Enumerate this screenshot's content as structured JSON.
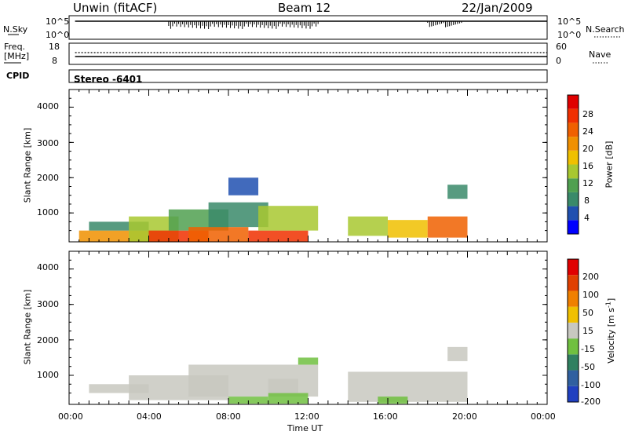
{
  "header": {
    "station": "Unwin (fitACF)",
    "beam": "Beam 12",
    "date": "22/Jan/2009"
  },
  "panels": {
    "nsky": {
      "label": "N.Sky",
      "ticks": [
        "10^5",
        "10^0"
      ],
      "right_label": "N.Search",
      "right_ticks": [
        "10^5",
        "10^0"
      ]
    },
    "freq": {
      "label_line1": "Freq.",
      "label_line2": "[MHz]",
      "ticks": [
        "18",
        "8"
      ],
      "right_label": "Nave",
      "right_ticks": [
        "60",
        "0"
      ]
    },
    "cpid": {
      "label": "CPID",
      "value": "Stereo -6401"
    }
  },
  "y_axis": {
    "label": "Slant Range [km]",
    "ticks": [
      "4000",
      "3000",
      "2000",
      "1000"
    ]
  },
  "x_axis": {
    "label": "Time UT",
    "ticks": [
      "00:00",
      "04:00",
      "08:00",
      "12:00",
      "16:00",
      "20:00",
      "00:00"
    ]
  },
  "power_scale": {
    "label": "Power [dB]",
    "ticks": [
      "28",
      "24",
      "20",
      "16",
      "12",
      "8",
      "4"
    ],
    "colors": [
      "#0000ff",
      "#2050b0",
      "#3a8a6a",
      "#50a050",
      "#a8c830",
      "#f0c000",
      "#f09000",
      "#f06000",
      "#f03000",
      "#e00000"
    ]
  },
  "velocity_scale": {
    "label_main": "Velocity",
    "label_unit": "[m s",
    "label_exp": "-1",
    "label_close": "]",
    "ticks": [
      "200",
      "100",
      "50",
      "15",
      "-15",
      "-50",
      "-100",
      "-200"
    ],
    "colors": [
      "#2040c0",
      "#3060a0",
      "#308060",
      "#70c040",
      "#c8c8c0",
      "#f0c000",
      "#f08000",
      "#e04000",
      "#e00000"
    ]
  },
  "chart_data": [
    {
      "type": "heatmap",
      "title": "",
      "xlabel": "Time UT",
      "ylabel": "Slant Range [km]",
      "xlim": [
        "00:00",
        "24:00"
      ],
      "ylim": [
        180,
        4500
      ],
      "quantity": "Power [dB]",
      "zlim": [
        0,
        30
      ],
      "data_blocks": [
        {
          "t0": 0.5,
          "t1": 4.0,
          "r0": 180,
          "r1": 500,
          "v": 20
        },
        {
          "t0": 1.0,
          "t1": 4.0,
          "r0": 500,
          "r1": 750,
          "v": 6
        },
        {
          "t0": 3.0,
          "t1": 5.5,
          "r0": 180,
          "r1": 900,
          "v": 14
        },
        {
          "t0": 4.0,
          "t1": 7.0,
          "r0": 180,
          "r1": 500,
          "v": 26
        },
        {
          "t0": 5.0,
          "t1": 8.0,
          "r0": 500,
          "r1": 1100,
          "v": 10
        },
        {
          "t0": 6.0,
          "t1": 9.0,
          "r0": 180,
          "r1": 600,
          "v": 22
        },
        {
          "t0": 7.0,
          "t1": 10.0,
          "r0": 600,
          "r1": 1300,
          "v": 8
        },
        {
          "t0": 9.0,
          "t1": 12.0,
          "r0": 180,
          "r1": 500,
          "v": 26
        },
        {
          "t0": 9.5,
          "t1": 12.5,
          "r0": 500,
          "r1": 1200,
          "v": 12
        },
        {
          "t0": 8.0,
          "t1": 9.5,
          "r0": 1500,
          "r1": 2000,
          "v": 4
        },
        {
          "t0": 14.0,
          "t1": 16.0,
          "r0": 350,
          "r1": 900,
          "v": 12
        },
        {
          "t0": 16.0,
          "t1": 18.0,
          "r0": 300,
          "r1": 800,
          "v": 16
        },
        {
          "t0": 18.0,
          "t1": 20.0,
          "r0": 300,
          "r1": 900,
          "v": 22
        },
        {
          "t0": 19.0,
          "t1": 20.0,
          "r0": 1400,
          "r1": 1800,
          "v": 6
        }
      ]
    },
    {
      "type": "heatmap",
      "title": "",
      "xlabel": "Time UT",
      "ylabel": "Slant Range [km]",
      "xlim": [
        "00:00",
        "24:00"
      ],
      "ylim": [
        180,
        4500
      ],
      "quantity": "Velocity [m s-1]",
      "zlim": [
        -250,
        250
      ],
      "data_blocks": [
        {
          "t0": 1.0,
          "t1": 4.0,
          "r0": 500,
          "r1": 750,
          "v": 0
        },
        {
          "t0": 3.0,
          "t1": 8.0,
          "r0": 300,
          "r1": 1000,
          "v": 0
        },
        {
          "t0": 6.0,
          "t1": 12.5,
          "r0": 400,
          "r1": 1300,
          "v": 0
        },
        {
          "t0": 8.0,
          "t1": 10.0,
          "r0": 200,
          "r1": 400,
          "v": -40
        },
        {
          "t0": 10.0,
          "t1": 12.0,
          "r0": 200,
          "r1": 500,
          "v": -60
        },
        {
          "t0": 10.0,
          "t1": 11.5,
          "r0": 500,
          "r1": 900,
          "v": 25
        },
        {
          "t0": 11.5,
          "t1": 12.5,
          "r0": 1300,
          "r1": 1500,
          "v": -80
        },
        {
          "t0": 14.0,
          "t1": 20.0,
          "r0": 250,
          "r1": 1100,
          "v": 0
        },
        {
          "t0": 15.5,
          "t1": 17.0,
          "r0": 200,
          "r1": 400,
          "v": -40
        },
        {
          "t0": 19.0,
          "t1": 20.0,
          "r0": 1400,
          "r1": 1800,
          "v": 0
        }
      ]
    }
  ]
}
